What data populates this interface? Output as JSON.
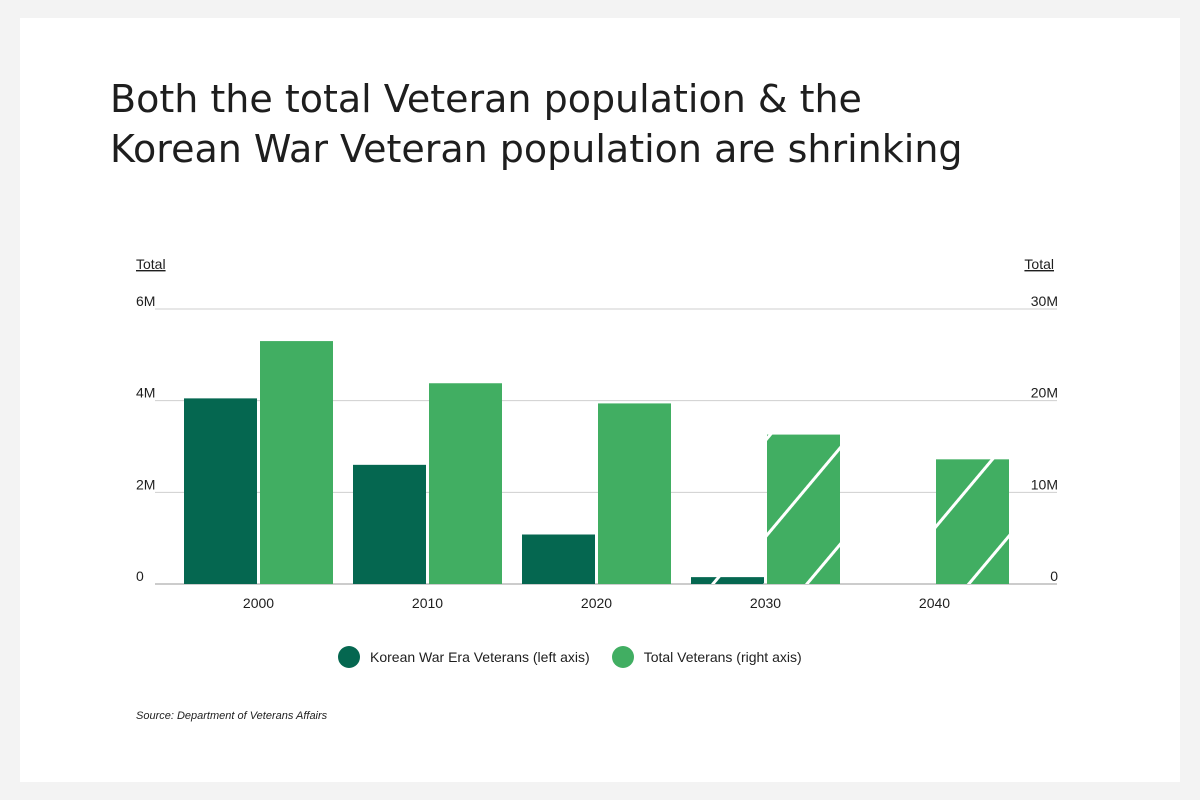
{
  "title_line1": "Both the total Veteran population & the",
  "title_line2": "Korean War Veteran population are shrinking",
  "source": "Source:  Department of Veterans Affairs",
  "colors": {
    "korean": "#056750",
    "total": "#41ae62",
    "grid": "#cfcfcf"
  },
  "chart_data": {
    "type": "bar",
    "categories": [
      "2000",
      "2010",
      "2020",
      "2030",
      "2040"
    ],
    "left_axis": {
      "title": "Total",
      "ylim": [
        0,
        6000000
      ],
      "ticks": [
        0,
        2000000,
        4000000,
        6000000
      ],
      "tick_labels": [
        "0",
        "2M",
        "4M",
        "6M"
      ]
    },
    "right_axis": {
      "title": "Total",
      "ylim": [
        0,
        30000000
      ],
      "ticks": [
        0,
        10000000,
        20000000,
        30000000
      ],
      "tick_labels": [
        "0",
        "10M",
        "20M",
        "30M"
      ]
    },
    "series": [
      {
        "name": "Korean War Era Veterans (left axis)",
        "axis": "left",
        "values": [
          4050000,
          2600000,
          1080000,
          150000,
          0
        ],
        "projected": [
          false,
          false,
          false,
          true,
          true
        ]
      },
      {
        "name": "Total Veterans (right axis)",
        "axis": "right",
        "values": [
          26500000,
          21900000,
          19700000,
          16300000,
          13600000
        ],
        "projected": [
          false,
          false,
          false,
          true,
          true
        ]
      }
    ],
    "grid": true,
    "legend_position": "bottom"
  }
}
